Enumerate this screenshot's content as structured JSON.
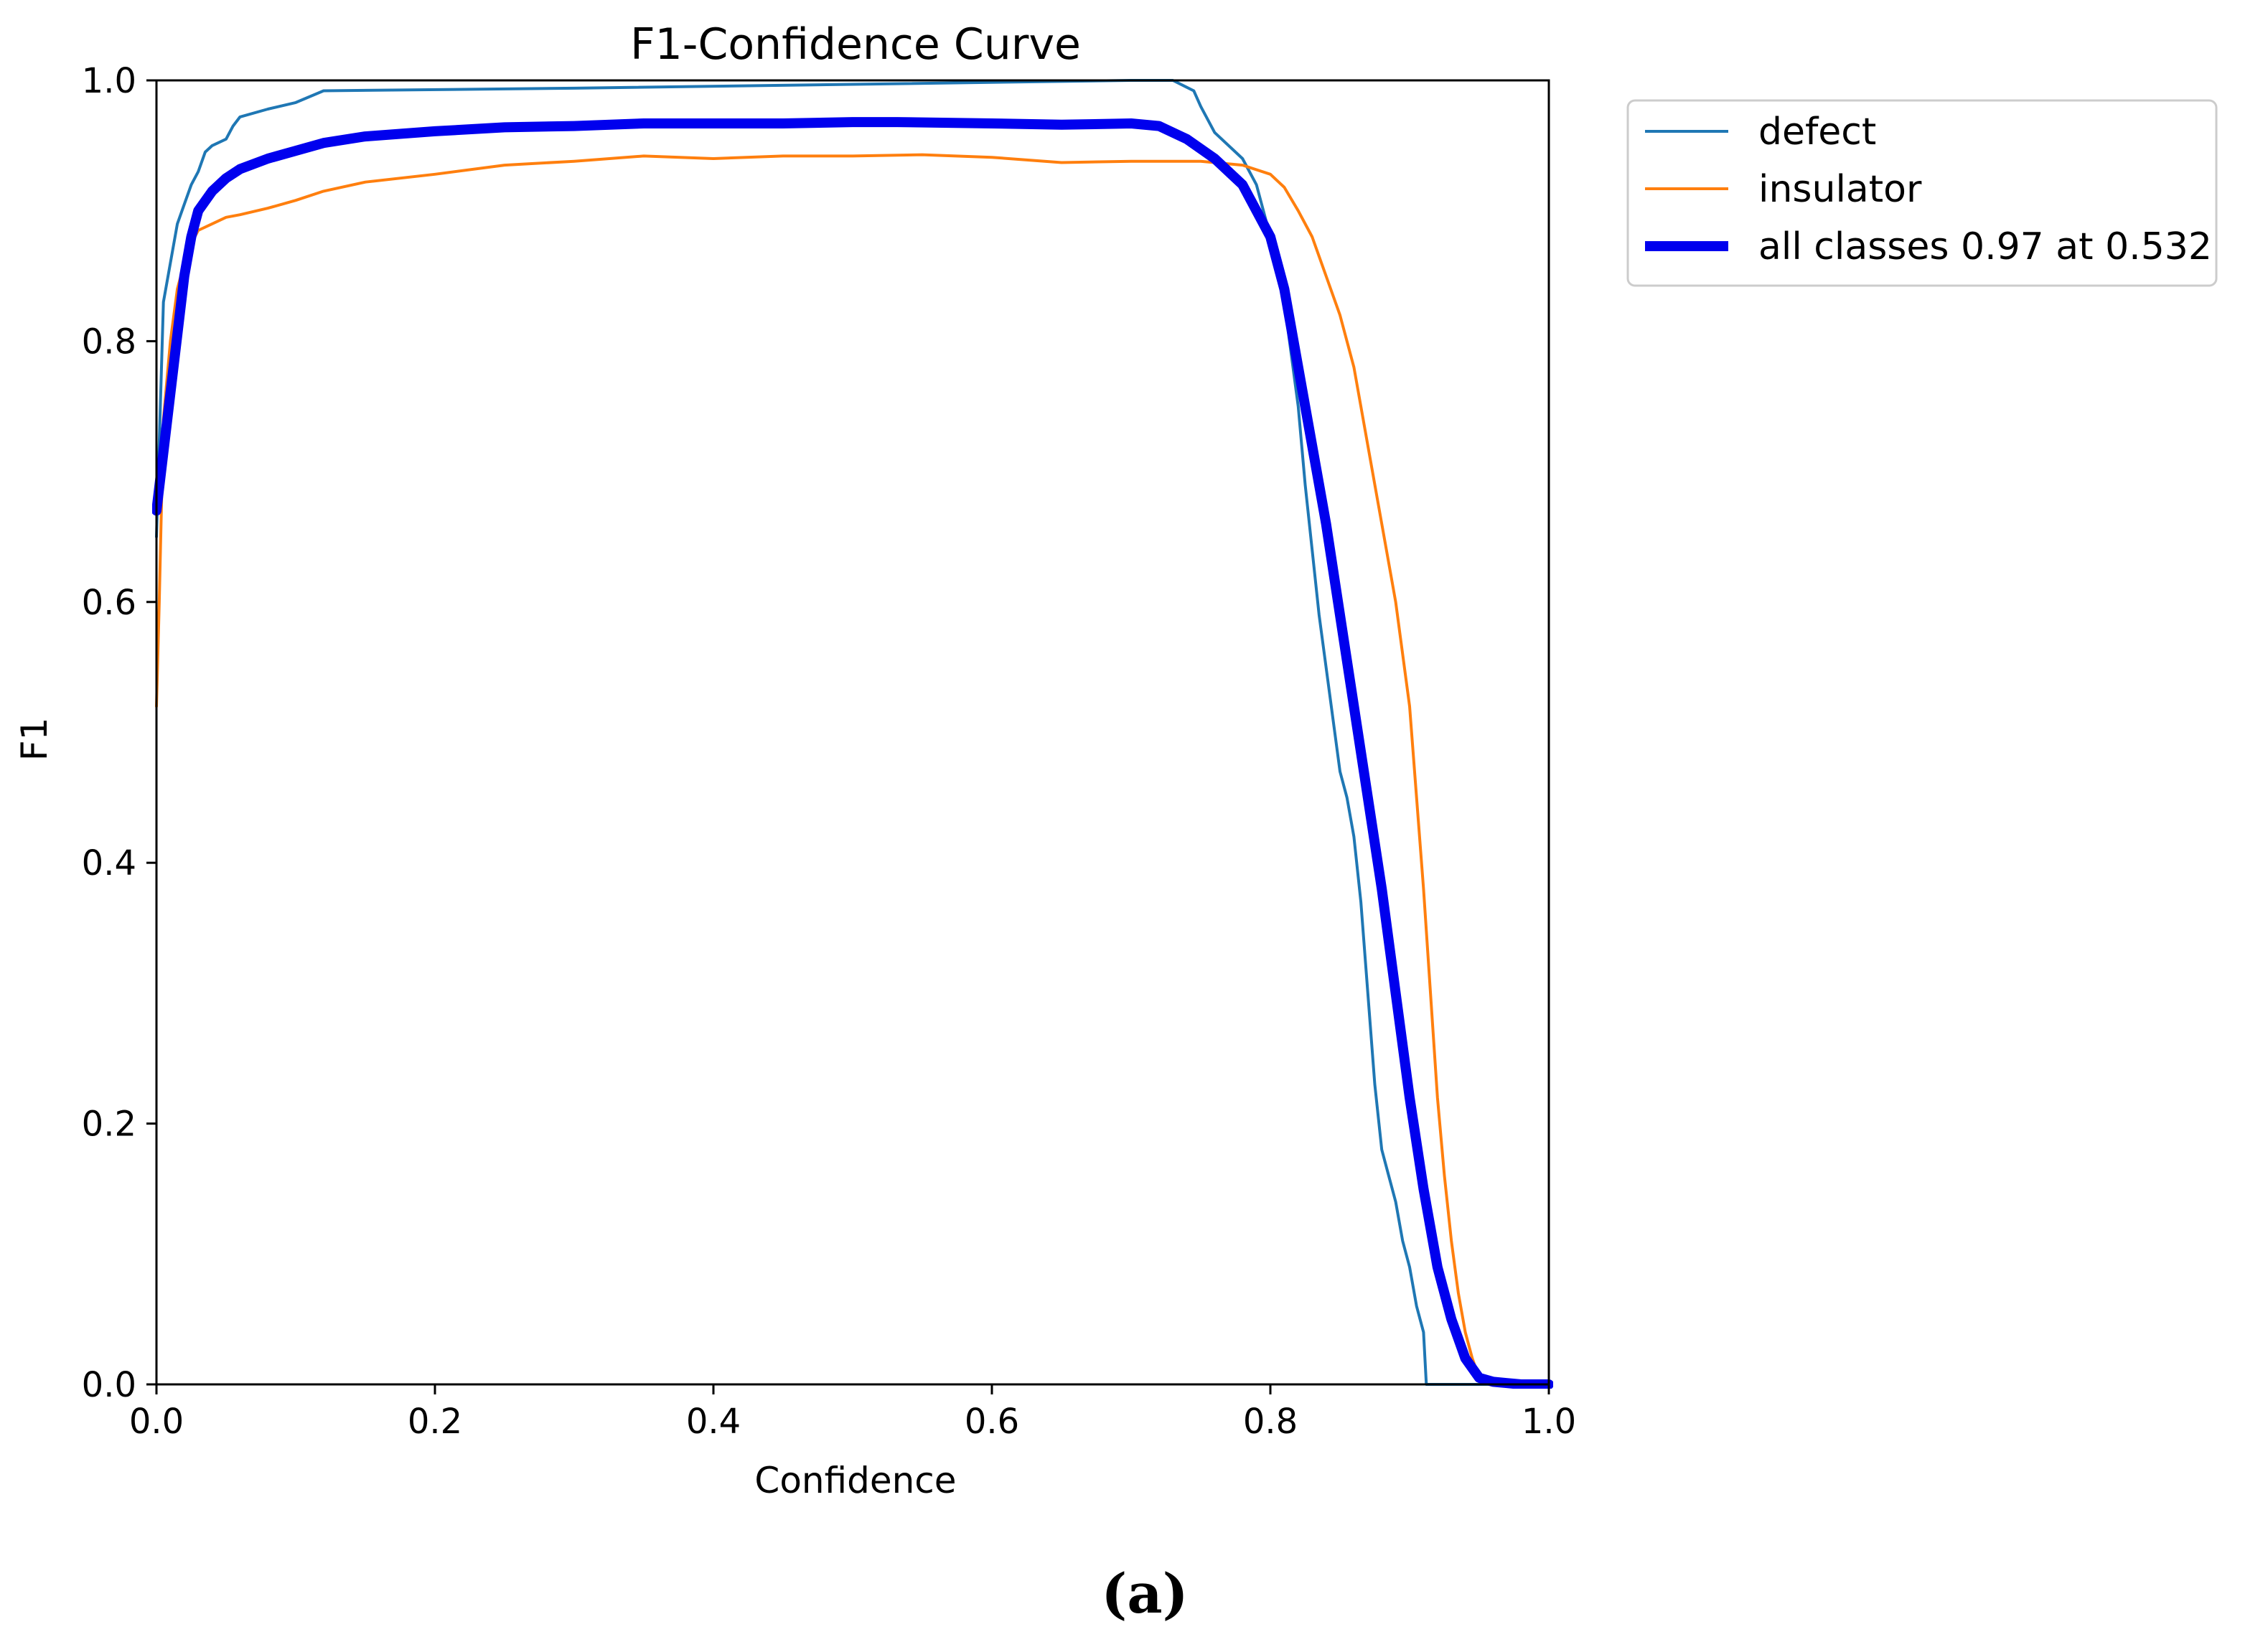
{
  "caption": "(a)",
  "chart_data": {
    "type": "line",
    "title": "F1-Confidence Curve",
    "xlabel": "Confidence",
    "ylabel": "F1",
    "xlim": [
      0.0,
      1.0
    ],
    "ylim": [
      0.0,
      1.0
    ],
    "xticks": [
      0.0,
      0.2,
      0.4,
      0.6,
      0.8,
      1.0
    ],
    "yticks": [
      0.0,
      0.2,
      0.4,
      0.6,
      0.8,
      1.0
    ],
    "xtick_labels": [
      "0.0",
      "0.2",
      "0.4",
      "0.6",
      "0.8",
      "1.0"
    ],
    "ytick_labels": [
      "0.0",
      "0.2",
      "0.4",
      "0.6",
      "0.8",
      "1.0"
    ],
    "grid": false,
    "legend_position": "outside-upper-right",
    "series": [
      {
        "name": "defect",
        "color": "#1f77b4",
        "x": [
          0.0,
          0.005,
          0.01,
          0.015,
          0.02,
          0.025,
          0.03,
          0.035,
          0.04,
          0.05,
          0.055,
          0.06,
          0.08,
          0.1,
          0.12,
          0.3,
          0.5,
          0.7,
          0.73,
          0.745,
          0.75,
          0.76,
          0.78,
          0.79,
          0.8,
          0.81,
          0.815,
          0.82,
          0.825,
          0.83,
          0.835,
          0.84,
          0.845,
          0.85,
          0.855,
          0.86,
          0.865,
          0.87,
          0.875,
          0.88,
          0.885,
          0.89,
          0.895,
          0.9,
          0.905,
          0.91,
          0.912,
          0.915,
          1.0
        ],
        "y": [
          0.65,
          0.83,
          0.86,
          0.89,
          0.905,
          0.92,
          0.93,
          0.945,
          0.95,
          0.955,
          0.965,
          0.972,
          0.978,
          0.983,
          0.992,
          0.994,
          0.997,
          1.0,
          1.0,
          0.992,
          0.98,
          0.96,
          0.94,
          0.92,
          0.88,
          0.83,
          0.79,
          0.75,
          0.69,
          0.64,
          0.59,
          0.55,
          0.51,
          0.47,
          0.45,
          0.42,
          0.37,
          0.3,
          0.23,
          0.18,
          0.16,
          0.14,
          0.11,
          0.09,
          0.06,
          0.04,
          0.0,
          0.0,
          0.0
        ]
      },
      {
        "name": "insulator",
        "color": "#ff7f0e",
        "x": [
          0.0,
          0.002,
          0.005,
          0.01,
          0.015,
          0.02,
          0.025,
          0.03,
          0.04,
          0.05,
          0.06,
          0.08,
          0.1,
          0.12,
          0.15,
          0.2,
          0.25,
          0.3,
          0.35,
          0.4,
          0.45,
          0.5,
          0.55,
          0.6,
          0.65,
          0.7,
          0.75,
          0.78,
          0.8,
          0.81,
          0.82,
          0.83,
          0.84,
          0.85,
          0.86,
          0.87,
          0.88,
          0.89,
          0.9,
          0.905,
          0.91,
          0.915,
          0.92,
          0.925,
          0.93,
          0.935,
          0.94,
          0.945,
          0.95,
          0.96,
          1.0
        ],
        "y": [
          0.52,
          0.6,
          0.74,
          0.8,
          0.84,
          0.86,
          0.875,
          0.885,
          0.89,
          0.895,
          0.897,
          0.902,
          0.908,
          0.915,
          0.922,
          0.928,
          0.935,
          0.938,
          0.942,
          0.94,
          0.942,
          0.942,
          0.943,
          0.941,
          0.937,
          0.938,
          0.938,
          0.935,
          0.928,
          0.918,
          0.9,
          0.88,
          0.85,
          0.82,
          0.78,
          0.72,
          0.66,
          0.6,
          0.52,
          0.45,
          0.38,
          0.3,
          0.22,
          0.16,
          0.11,
          0.07,
          0.04,
          0.02,
          0.005,
          0.0,
          0.0
        ]
      },
      {
        "name": "all classes 0.97 at 0.532",
        "color": "#0000ee",
        "x": [
          0.0,
          0.01,
          0.02,
          0.025,
          0.03,
          0.04,
          0.05,
          0.06,
          0.08,
          0.1,
          0.12,
          0.15,
          0.2,
          0.25,
          0.3,
          0.35,
          0.4,
          0.45,
          0.5,
          0.532,
          0.6,
          0.65,
          0.7,
          0.72,
          0.74,
          0.76,
          0.78,
          0.8,
          0.81,
          0.82,
          0.83,
          0.84,
          0.85,
          0.86,
          0.87,
          0.88,
          0.89,
          0.9,
          0.91,
          0.92,
          0.93,
          0.94,
          0.95,
          0.96,
          0.97,
          0.98,
          1.0
        ],
        "y": [
          0.67,
          0.76,
          0.85,
          0.88,
          0.9,
          0.915,
          0.925,
          0.932,
          0.94,
          0.946,
          0.952,
          0.957,
          0.961,
          0.964,
          0.965,
          0.967,
          0.967,
          0.967,
          0.968,
          0.968,
          0.967,
          0.966,
          0.967,
          0.965,
          0.955,
          0.94,
          0.92,
          0.88,
          0.84,
          0.78,
          0.72,
          0.66,
          0.59,
          0.52,
          0.45,
          0.38,
          0.3,
          0.22,
          0.15,
          0.09,
          0.05,
          0.02,
          0.005,
          0.002,
          0.001,
          0.0,
          0.0
        ]
      }
    ]
  }
}
